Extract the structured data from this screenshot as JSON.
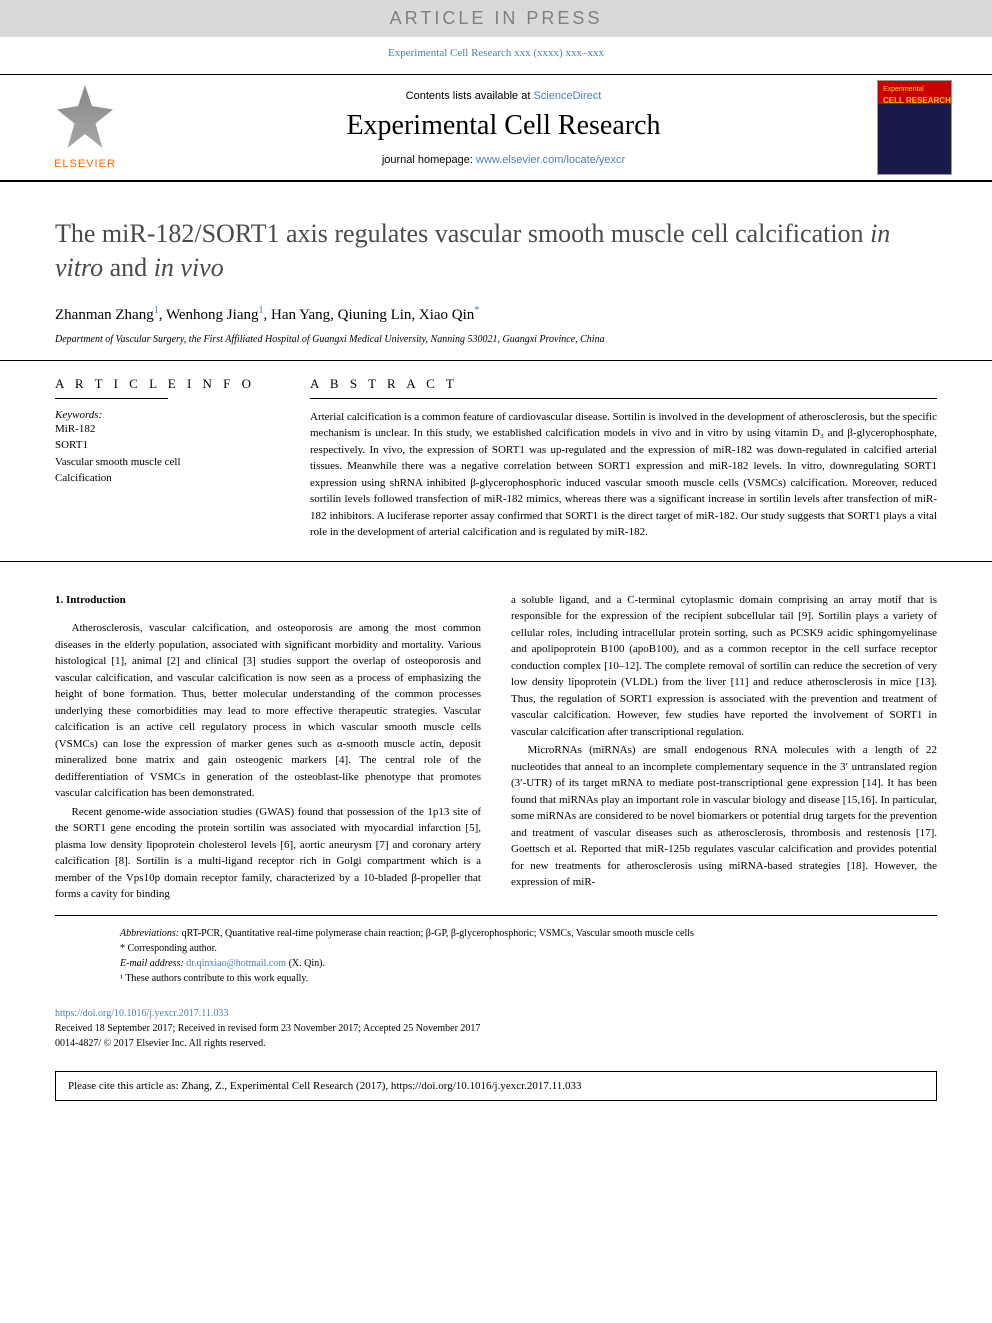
{
  "articleInPress": "ARTICLE IN PRESS",
  "journalRefLine": "Experimental Cell Research xxx (xxxx) xxx–xxx",
  "header": {
    "elsevierLabel": "ELSEVIER",
    "contentsPrefix": "Contents lists available at ",
    "contentsLink": "ScienceDirect",
    "journalName": "Experimental Cell Research",
    "homepagePrefix": "journal homepage: ",
    "homepageLink": "www.elsevier.com/locate/yexcr",
    "coverText1": "Experimental",
    "coverText2": "CELL RESEARCH"
  },
  "title": {
    "prefix": "The miR-182/SORT1 axis regulates vascular smooth muscle cell calcification ",
    "italic1": "in vitro",
    "mid": " and ",
    "italic2": "in vivo"
  },
  "authors": {
    "a1": "Zhanman Zhang",
    "s1": "1",
    "a2": ", Wenhong Jiang",
    "s2": "1",
    "a3": ", Han Yang, Qiuning Lin, Xiao Qin",
    "s3": "*"
  },
  "affiliation": "Department of Vascular Surgery, the First Affiliated Hospital of Guangxi Medical University, Nanning 530021, Guangxi Province, China",
  "articleInfo": {
    "heading": "A R T I C L E   I N F O",
    "keywordsLabel": "Keywords:",
    "keywords": [
      "MiR-182",
      "SORT1",
      "Vascular smooth muscle cell",
      "Calcification"
    ]
  },
  "abstract": {
    "heading": "A B S T R A C T",
    "text": "Arterial calcification is a common feature of cardiovascular disease. Sortilin is involved in the development of atherosclerosis, but the specific mechanism is unclear. In this study, we established calcification models in vivo and in vitro by using vitamin D₃ and β-glycerophosphate, respectively. In vivo, the expression of SORT1 was up-regulated and the expression of miR-182 was down-regulated in calcified arterial tissues. Meanwhile there was a negative correlation between SORT1 expression and miR-182 levels. In vitro, downregulating SORT1 expression using shRNA inhibited β-glycerophosphoric induced vascular smooth muscle cells (VSMCs) calcification. Moreover, reduced sortilin levels followed transfection of miR-182 mimics, whereas there was a significant increase in sortilin levels after transfection of miR-182 inhibitors. A luciferase reporter assay confirmed that SORT1 is the direct target of miR-182. Our study suggests that SORT1 plays a vital role in the development of arterial calcification and is regulated by miR-182."
  },
  "body": {
    "section1Heading": "1. Introduction",
    "col1para1": "Atherosclerosis, vascular calcification, and osteoporosis are among the most common diseases in the elderly population, associated with significant morbidity and mortality. Various histological [1], animal [2] and clinical [3] studies support the overlap of osteoporosis and vascular calcification, and vascular calcification is now seen as a process of emphasizing the height of bone formation. Thus, better molecular understanding of the common processes underlying these comorbidities may lead to more effective therapeutic strategies. Vascular calcification is an active cell regulatory process in which vascular smooth muscle cells (VSMCs) can lose the expression of marker genes such as α-smooth muscle actin, deposit mineralized bone matrix and gain osteogenic markers [4]. The central role of the dedifferentiation of VSMCs in generation of the osteoblast-like phenotype that promotes vascular calcification has been demonstrated.",
    "col1para2": "Recent genome-wide association studies (GWAS) found that possession of the 1p13 site of the SORT1 gene encoding the protein sortilin was associated with myocardial infarction [5], plasma low density lipoprotein cholesterol levels [6], aortic aneurysm [7] and coronary artery calcification [8]. Sortilin is a multi-ligand receptor rich in Golgi compartment which is a member of the Vps10p domain receptor family, characterized by a 10-bladed β-propeller that forms a cavity for binding",
    "col2para1": "a soluble ligand, and a C-terminal cytoplasmic domain comprising an array motif that is responsible for the expression of the recipient subcellular tail [9]. Sortilin plays a variety of cellular roles, including intracellular protein sorting, such as PCSK9 acidic sphingomyelinase and apolipoprotein B100 (apoB100), and as a common receptor in the cell surface receptor conduction complex [10–12]. The complete removal of sortilin can reduce the secretion of very low density lipoprotein (VLDL) from the liver [11] and reduce atherosclerosis in mice [13]. Thus, the regulation of SORT1 expression is associated with the prevention and treatment of vascular calcification. However, few studies have reported the involvement of SORT1 in vascular calcification after transcriptional regulation.",
    "col2para2": "MicroRNAs (miRNAs) are small endogenous RNA molecules with a length of 22 nucleotides that anneal to an incomplete complementary sequence in the 3′ untranslated region (3′-UTR) of its target mRNA to mediate post-transcriptional gene expression [14]. It has been found that miRNAs play an important role in vascular biology and disease [15,16]. In particular, some miRNAs are considered to be novel biomarkers or potential drug targets for the prevention and treatment of vascular diseases such as atherosclerosis, thrombosis and restenosis [17]. Goettsch et al. Reported that miR-125b regulates vascular calcification and provides potential for new treatments for atherosclerosis using miRNA-based strategies [18]. However, the expression of miR-"
  },
  "footer": {
    "abbrevLabel": "Abbreviations:",
    "abbrevText": " qRT-PCR, Quantitative real-time polymerase chain reaction; β-GP, β-glycerophosphoric; VSMCs, Vascular smooth muscle cells",
    "corresp": "* Corresponding author.",
    "emailLabel": "E-mail address: ",
    "email": "dr.qinxiao@hotmail.com",
    "emailSuffix": " (X. Qin).",
    "equalContrib": "¹ These authors contribute to this work equally."
  },
  "doi": {
    "link": "https://doi.org/10.1016/j.yexcr.2017.11.033",
    "received": "Received 18 September 2017; Received in revised form 23 November 2017; Accepted 25 November 2017",
    "copyright": "0014-4827/ © 2017 Elsevier Inc. All rights reserved."
  },
  "citeBox": "Please cite this article as: Zhang, Z., Experimental Cell Research (2017), https://doi.org/10.1016/j.yexcr.2017.11.033",
  "colors": {
    "linkBlue": "#4a7fb5",
    "elsevierOrange": "#ff6600",
    "grayBanner": "#d9d9d9",
    "coverRed": "#c80000",
    "coverBlue": "#1a1a4a"
  },
  "typography": {
    "bodyFont": "Georgia, 'Times New Roman', serif",
    "bannerFont": "Arial, sans-serif",
    "titleSize": 26,
    "journalNameSize": 28,
    "bodySize": 11,
    "abstractSize": 11,
    "footerSize": 10
  }
}
